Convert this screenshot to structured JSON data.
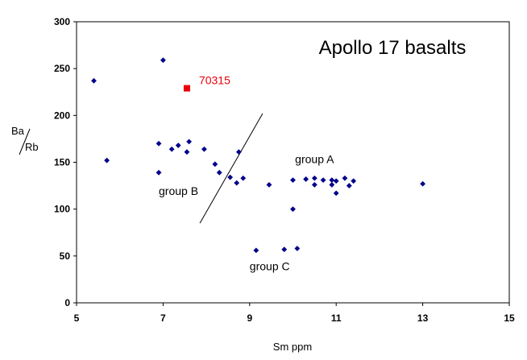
{
  "chart_data": {
    "type": "scatter",
    "title": "Apollo 17 basalts",
    "xlabel": "Sm ppm",
    "ylabel_top": "Ba",
    "ylabel_bottom": "Rb",
    "xlim": [
      5,
      15
    ],
    "ylim": [
      0,
      300
    ],
    "xticks": [
      5,
      7,
      9,
      11,
      13,
      15
    ],
    "yticks": [
      0,
      50,
      100,
      150,
      200,
      250,
      300
    ],
    "grid": false,
    "colors": {
      "points": "#00008B",
      "highlight": "#E8000B",
      "axis": "#000000"
    },
    "points": [
      {
        "x": 5.4,
        "y": 237
      },
      {
        "x": 5.7,
        "y": 152
      },
      {
        "x": 6.9,
        "y": 170
      },
      {
        "x": 6.9,
        "y": 139
      },
      {
        "x": 7.0,
        "y": 259
      },
      {
        "x": 7.2,
        "y": 164
      },
      {
        "x": 7.35,
        "y": 168
      },
      {
        "x": 7.55,
        "y": 161
      },
      {
        "x": 7.6,
        "y": 172
      },
      {
        "x": 7.95,
        "y": 164
      },
      {
        "x": 8.2,
        "y": 148
      },
      {
        "x": 8.3,
        "y": 139
      },
      {
        "x": 8.55,
        "y": 134
      },
      {
        "x": 8.7,
        "y": 128
      },
      {
        "x": 8.75,
        "y": 161
      },
      {
        "x": 8.85,
        "y": 133
      },
      {
        "x": 9.15,
        "y": 56
      },
      {
        "x": 9.45,
        "y": 126
      },
      {
        "x": 9.8,
        "y": 57
      },
      {
        "x": 10.0,
        "y": 131
      },
      {
        "x": 10.0,
        "y": 100
      },
      {
        "x": 10.1,
        "y": 58
      },
      {
        "x": 10.3,
        "y": 132
      },
      {
        "x": 10.5,
        "y": 133
      },
      {
        "x": 10.5,
        "y": 126
      },
      {
        "x": 10.7,
        "y": 131
      },
      {
        "x": 10.9,
        "y": 131
      },
      {
        "x": 10.9,
        "y": 126
      },
      {
        "x": 11.0,
        "y": 130
      },
      {
        "x": 11.0,
        "y": 117
      },
      {
        "x": 11.2,
        "y": 133
      },
      {
        "x": 11.3,
        "y": 125
      },
      {
        "x": 11.4,
        "y": 130
      },
      {
        "x": 13.0,
        "y": 127
      }
    ],
    "highlight": {
      "label": "70315",
      "x": 7.55,
      "y": 229
    },
    "divider_line": {
      "x1": 7.85,
      "y1": 85,
      "x2": 9.3,
      "y2": 202
    },
    "annotations": [
      {
        "text": "group A",
        "x": 10.05,
        "y": 149
      },
      {
        "text": "group B",
        "x": 6.9,
        "y": 115
      },
      {
        "text": "group C",
        "x": 9.0,
        "y": 35
      }
    ]
  }
}
